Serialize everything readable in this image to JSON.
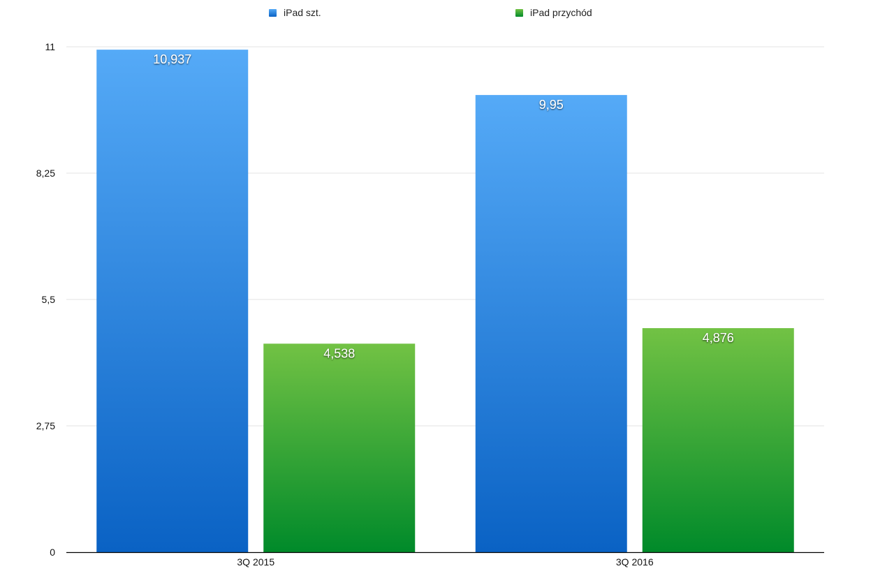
{
  "chart_data": {
    "type": "bar",
    "categories": [
      "3Q 2015",
      "3Q 2016"
    ],
    "series": [
      {
        "name": "iPad szt.",
        "values": [
          10.937,
          9.95
        ],
        "labels": [
          "10,937",
          "9,95"
        ],
        "color": "#3a8ee6",
        "gradient": [
          "#55aaf7",
          "#0a62c4"
        ]
      },
      {
        "name": "iPad przychód",
        "values": [
          4.538,
          4.876
        ],
        "labels": [
          "4,538",
          "4,876"
        ],
        "color": "#4cae3c",
        "gradient": [
          "#72c244",
          "#008a2a"
        ]
      }
    ],
    "y_ticks": [
      0,
      2.75,
      5.5,
      8.25,
      11
    ],
    "y_tick_labels": [
      "0",
      "2,75",
      "5,5",
      "8,25",
      "11"
    ],
    "ylim": [
      0,
      11
    ],
    "grid": true,
    "legend_position": "top",
    "title": "",
    "xlabel": "",
    "ylabel": ""
  }
}
